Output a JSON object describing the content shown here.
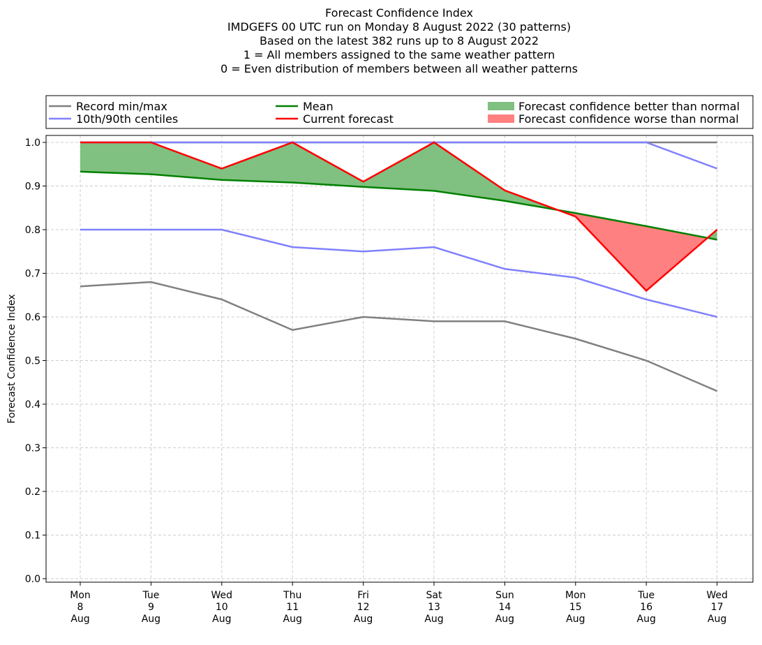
{
  "colors": {
    "record": "#808080",
    "centile": "#8080ff",
    "mean": "#008000",
    "current": "#ff0000",
    "better_fill": "#80c080",
    "worse_fill": "#ff8080",
    "grid": "#cccccc"
  },
  "chart_data": {
    "type": "line",
    "title_lines": [
      "Forecast Confidence Index",
      "IMDGEFS 00 UTC run on Monday 8 August 2022 (30 patterns)",
      "Based on the latest 382 runs up to 8 August 2022",
      "1 = All members assigned to the same weather pattern",
      "0 = Even distribution of members between all weather patterns"
    ],
    "ylabel": "Forecast Confidence Index",
    "xlabel": "",
    "ylim": [
      0.0,
      1.0
    ],
    "yticks": [
      "0.0",
      "0.1",
      "0.2",
      "0.3",
      "0.4",
      "0.5",
      "0.6",
      "0.7",
      "0.8",
      "0.9",
      "1.0"
    ],
    "grid": true,
    "legend_placement": "top, above plot",
    "categories": [
      [
        "Mon",
        "8",
        "Aug"
      ],
      [
        "Tue",
        "9",
        "Aug"
      ],
      [
        "Wed",
        "10",
        "Aug"
      ],
      [
        "Thu",
        "11",
        "Aug"
      ],
      [
        "Fri",
        "12",
        "Aug"
      ],
      [
        "Sat",
        "13",
        "Aug"
      ],
      [
        "Sun",
        "14",
        "Aug"
      ],
      [
        "Mon",
        "15",
        "Aug"
      ],
      [
        "Tue",
        "16",
        "Aug"
      ],
      [
        "Wed",
        "17",
        "Aug"
      ]
    ],
    "series": {
      "record_max": [
        1.0,
        1.0,
        1.0,
        1.0,
        1.0,
        1.0,
        1.0,
        1.0,
        1.0,
        1.0
      ],
      "record_min": [
        0.67,
        0.68,
        0.64,
        0.57,
        0.6,
        0.59,
        0.59,
        0.55,
        0.5,
        0.43
      ],
      "centile_90": [
        1.0,
        1.0,
        1.0,
        1.0,
        1.0,
        1.0,
        1.0,
        1.0,
        1.0,
        0.94
      ],
      "centile_10": [
        0.8,
        0.8,
        0.8,
        0.76,
        0.75,
        0.76,
        0.71,
        0.69,
        0.64,
        0.6
      ],
      "mean": [
        0.933,
        0.927,
        0.914,
        0.908,
        0.898,
        0.889,
        0.866,
        0.838,
        0.808,
        0.777
      ],
      "current": [
        1.0,
        1.0,
        0.94,
        1.0,
        0.91,
        1.0,
        0.89,
        0.83,
        0.66,
        0.8
      ]
    },
    "legend": [
      {
        "label": "Record min/max",
        "kind": "line",
        "color_key": "record"
      },
      {
        "label": "10th/90th centiles",
        "kind": "line",
        "color_key": "centile"
      },
      {
        "label": "Mean",
        "kind": "line",
        "color_key": "mean"
      },
      {
        "label": "Current forecast",
        "kind": "line",
        "color_key": "current"
      },
      {
        "label": "Forecast confidence better than normal",
        "kind": "patch",
        "color_key": "better_fill"
      },
      {
        "label": "Forecast confidence worse than normal",
        "kind": "patch",
        "color_key": "worse_fill"
      }
    ]
  }
}
